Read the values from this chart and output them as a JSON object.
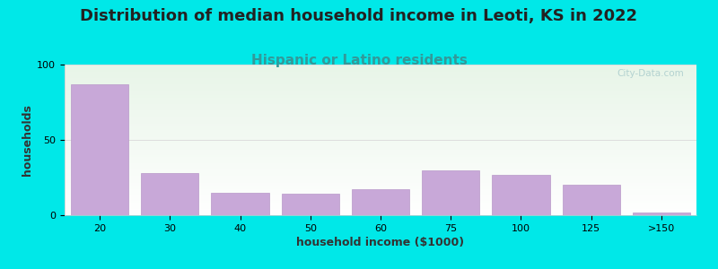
{
  "title": "Distribution of median household income in Leoti, KS in 2022",
  "subtitle": "Hispanic or Latino residents",
  "xlabel": "household income ($1000)",
  "ylabel": "households",
  "categories": [
    "20",
    "30",
    "40",
    "50",
    "60",
    "75",
    "100",
    "125",
    ">150"
  ],
  "values": [
    87,
    28,
    15,
    14,
    17,
    30,
    27,
    20,
    2
  ],
  "bar_color": "#c8a8d8",
  "bar_edge_color": "#b898c8",
  "background_color": "#00e8e8",
  "plot_bg_top_left": "#e8f5e8",
  "plot_bg_top_right": "#e0f0f0",
  "plot_bg_bottom": "#ffffff",
  "ylim": [
    0,
    100
  ],
  "yticks": [
    0,
    50,
    100
  ],
  "title_fontsize": 13,
  "subtitle_fontsize": 11,
  "subtitle_color": "#339999",
  "title_color": "#222222",
  "axis_label_fontsize": 9,
  "tick_fontsize": 8,
  "watermark": "City-Data.com",
  "watermark_color": "#aacccc"
}
